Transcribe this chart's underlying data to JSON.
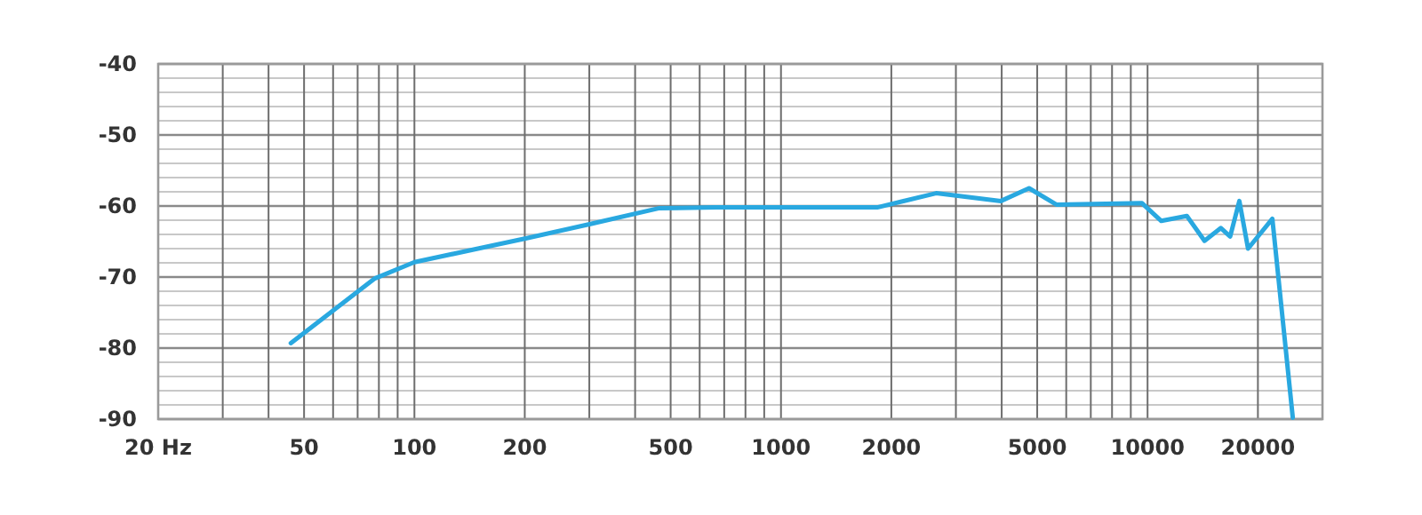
{
  "chart_data": {
    "type": "line",
    "log": "x",
    "grid": true,
    "xlim": [
      20,
      30000
    ],
    "ylim": [
      -90,
      -40
    ],
    "xticks": [
      {
        "value": 20,
        "label": "20 Hz"
      },
      {
        "value": 30,
        "label": null
      },
      {
        "value": 40,
        "label": null
      },
      50,
      {
        "value": 60,
        "label": null
      },
      {
        "value": 70,
        "label": null
      },
      {
        "value": 80,
        "label": null
      },
      {
        "value": 90,
        "label": null
      },
      100,
      200,
      {
        "value": 300,
        "label": null
      },
      {
        "value": 400,
        "label": null
      },
      500,
      {
        "value": 600,
        "label": null
      },
      {
        "value": 700,
        "label": null
      },
      {
        "value": 800,
        "label": null
      },
      {
        "value": 900,
        "label": null
      },
      1000,
      2000,
      {
        "value": 3000,
        "label": null
      },
      {
        "value": 4000,
        "label": null
      },
      5000,
      {
        "value": 6000,
        "label": null
      },
      {
        "value": 7000,
        "label": null
      },
      {
        "value": 8000,
        "label": null
      },
      {
        "value": 9000,
        "label": null
      },
      10000,
      20000
    ],
    "yticks": [
      -90,
      {
        "value": -88,
        "label": null
      },
      {
        "value": -86,
        "label": null
      },
      {
        "value": -84,
        "label": null
      },
      {
        "value": -82,
        "label": null
      },
      -80,
      {
        "value": -78,
        "label": null
      },
      {
        "value": -76,
        "label": null
      },
      {
        "value": -74,
        "label": null
      },
      {
        "value": -72,
        "label": null
      },
      -70,
      {
        "value": -68,
        "label": null
      },
      {
        "value": -66,
        "label": null
      },
      {
        "value": -64,
        "label": null
      },
      {
        "value": -62,
        "label": null
      },
      -60,
      {
        "value": -58,
        "label": null
      },
      {
        "value": -56,
        "label": null
      },
      {
        "value": -54,
        "label": null
      },
      {
        "value": -52,
        "label": null
      },
      -50,
      {
        "value": -48,
        "label": null
      },
      {
        "value": -46,
        "label": null
      },
      {
        "value": -44,
        "label": null
      },
      {
        "value": -42,
        "label": null
      },
      -40
    ],
    "marker": "none",
    "line_style": "solid",
    "series": [
      {
        "color": "#29a8e0",
        "x": [
          46,
          78,
          100,
          149,
          200,
          304,
          466,
          667,
          1830,
          2650,
          3980,
          4750,
          5640,
          9660,
          10900,
          12800,
          14300,
          15850,
          16800,
          17800,
          18800,
          21900,
          24900
        ],
        "values": [
          -79.3,
          -70.2,
          -67.9,
          -66,
          -64.6,
          -62.5,
          -60.3,
          -60.2,
          -60.2,
          -58.2,
          -59.3,
          -57.5,
          -59.8,
          -59.6,
          -62.1,
          -61.4,
          -64.9,
          -63.1,
          -64.3,
          -59.3,
          -66,
          -61.8,
          -89.8
        ]
      }
    ]
  }
}
